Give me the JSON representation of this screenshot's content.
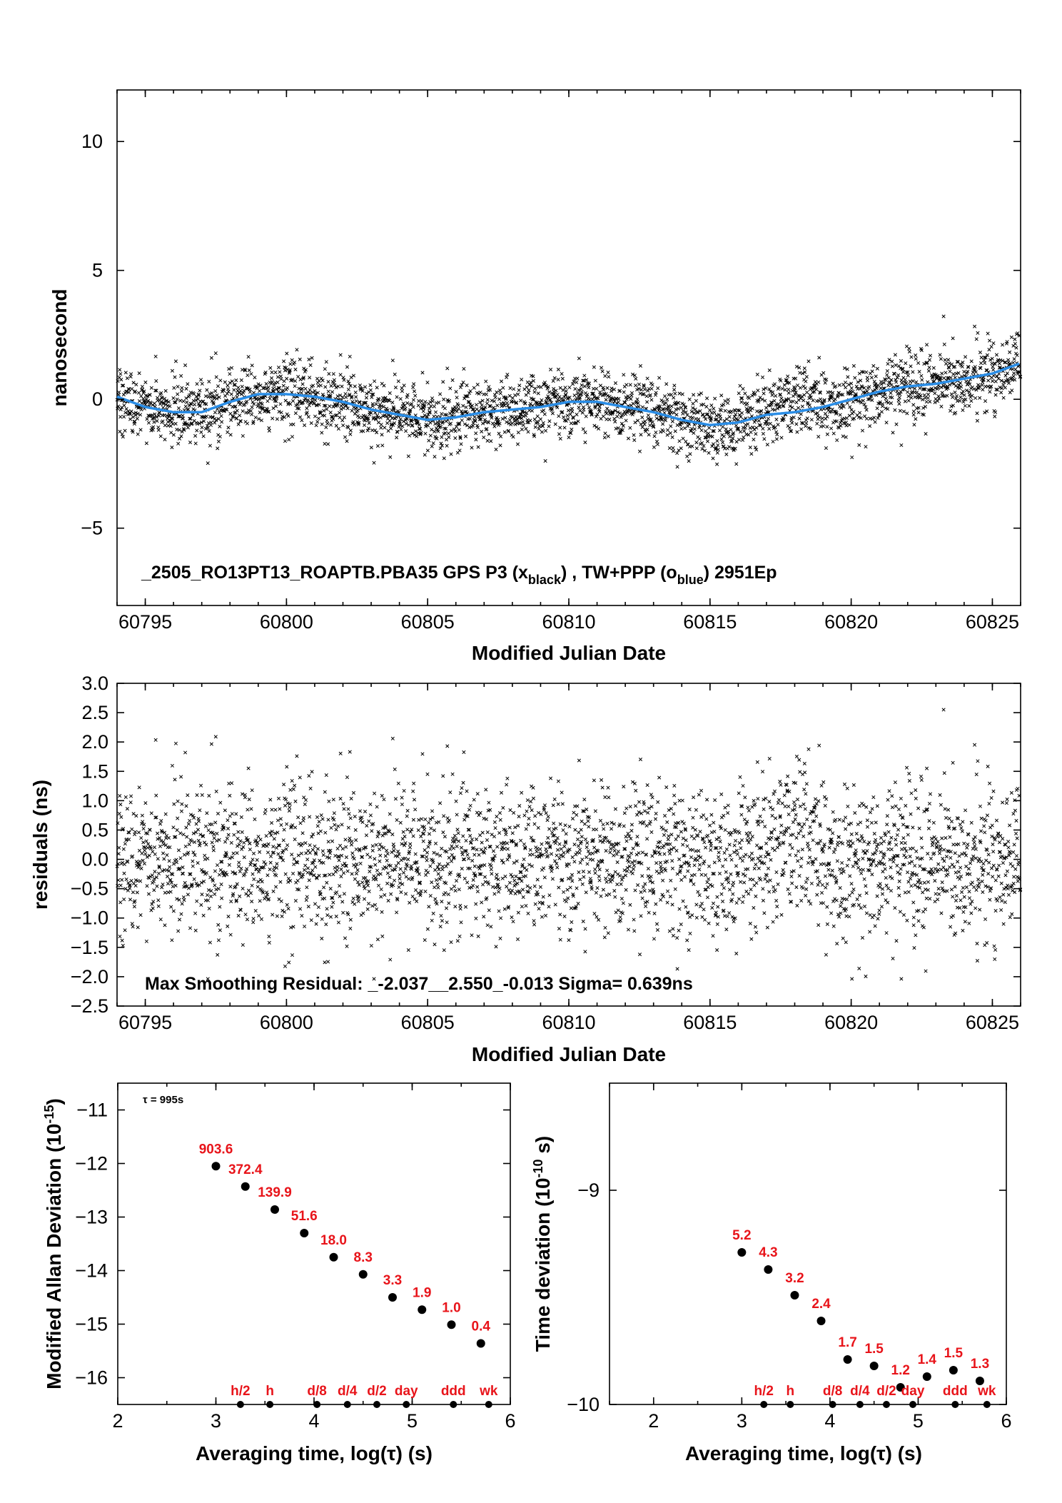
{
  "colors": {
    "points": "#000000",
    "smooth_line": "#2a8de6",
    "labels": "#e8141a"
  },
  "chart_data": [
    {
      "type": "scatter",
      "xlabel": "Modified Julian Date",
      "ylabel": "nanosecond",
      "xlim": [
        60794,
        60826
      ],
      "ylim": [
        -8,
        12
      ],
      "x_ticks": [
        60795,
        60800,
        60805,
        60810,
        60815,
        60820,
        60825
      ],
      "y_ticks": [
        -5,
        0,
        5,
        10
      ],
      "annotation": {
        "main": "_2505_RO13PT13_ROAPTB.PBA35     GPS P3 (x",
        "sub1": "black",
        "mid": ") ,  TW+PPP (o",
        "sub2": "blue",
        "end": ")  2951Ep"
      },
      "series": [
        {
          "marker": "x",
          "n_points": 2951,
          "spread_ns": 0.64
        },
        {
          "marker": "o",
          "smooth_x": [
            60794,
            60795,
            60796,
            60797,
            60798,
            60799,
            60800,
            60801,
            60802,
            60803,
            60804,
            60805,
            60806,
            60807,
            60808,
            60809,
            60810,
            60811,
            60812,
            60813,
            60814,
            60815,
            60816,
            60817,
            60818,
            60819,
            60820,
            60821,
            60822,
            60823,
            60824,
            60825,
            60826
          ],
          "smooth_y": [
            0.1,
            -0.3,
            -0.5,
            -0.5,
            -0.1,
            0.2,
            0.2,
            0.1,
            -0.1,
            -0.4,
            -0.6,
            -0.8,
            -0.7,
            -0.5,
            -0.4,
            -0.3,
            -0.1,
            -0.1,
            -0.3,
            -0.5,
            -0.8,
            -1.0,
            -0.9,
            -0.6,
            -0.5,
            -0.3,
            0.0,
            0.3,
            0.5,
            0.6,
            0.8,
            1.0,
            1.4
          ]
        }
      ]
    },
    {
      "type": "scatter",
      "xlabel": "Modified Julian Date",
      "ylabel": "residuals (ns)",
      "xlim": [
        60794,
        60826
      ],
      "ylim": [
        -2.5,
        3.0
      ],
      "x_ticks": [
        60795,
        60800,
        60805,
        60810,
        60815,
        60820,
        60825
      ],
      "y_ticks": [
        -2.5,
        -2.0,
        -1.5,
        -1.0,
        -0.5,
        0.0,
        0.5,
        1.0,
        1.5,
        2.0,
        2.5,
        3.0
      ],
      "y_tick_labels": [
        "−2.5",
        "−2.0",
        "−1.5",
        "−1.0",
        "−0.5",
        "0.0",
        "0.5",
        "1.0",
        "1.5",
        "2.0",
        "2.5",
        "3.0"
      ],
      "annotation": "Max Smoothing Residual: _-2.037__2.550_-0.013  Sigma= 0.639ns",
      "sigma_ns": 0.639,
      "min_ns": -2.037,
      "max_ns": 2.55
    },
    {
      "type": "scatter",
      "xlabel": "Averaging time, log(τ) (s)",
      "ylabel_main": "Modified Allan Deviation (10",
      "ylabel_sup": "-15",
      "ylabel_end": ")",
      "xlim": [
        2,
        6
      ],
      "ylim": [
        -16.5,
        -10.5
      ],
      "x_ticks": [
        2,
        3,
        4,
        5,
        6
      ],
      "y_ticks": [
        -16,
        -15,
        -14,
        -13,
        -12,
        -11
      ],
      "y_tick_labels": [
        "−16",
        "−15",
        "−14",
        "−13",
        "−12",
        "−11"
      ],
      "tau_note": "τ = 995s",
      "x": [
        3.0,
        3.3,
        3.6,
        3.9,
        4.2,
        4.5,
        4.8,
        5.1,
        5.4,
        5.7
      ],
      "y": [
        -12.05,
        -12.43,
        -12.86,
        -13.3,
        -13.75,
        -14.07,
        -14.5,
        -14.73,
        -15.01,
        -15.36
      ],
      "labels": [
        "903.6",
        "372.4",
        "139.9",
        "51.6",
        "18.0",
        "8.3",
        "3.3",
        "1.9",
        "1.0",
        "0.4"
      ],
      "markers": [
        {
          "label": "h/2",
          "x": 3.25
        },
        {
          "label": "h",
          "x": 3.55
        },
        {
          "label": "d/8",
          "x": 4.03
        },
        {
          "label": "d/4",
          "x": 4.34
        },
        {
          "label": "d/2",
          "x": 4.64
        },
        {
          "label": "day",
          "x": 4.94
        },
        {
          "label": "ddd",
          "x": 5.42
        },
        {
          "label": "wk",
          "x": 5.78
        }
      ]
    },
    {
      "type": "scatter",
      "xlabel": "Averaging time, log(τ) (s)",
      "ylabel_main": "Time deviation (10",
      "ylabel_sup": "-10",
      "ylabel_end": " s)",
      "xlim": [
        1.5,
        6
      ],
      "ylim": [
        -10,
        -8.5
      ],
      "x_ticks": [
        2,
        3,
        4,
        5,
        6
      ],
      "y_ticks": [
        -10,
        -9
      ],
      "y_tick_labels": [
        "−10",
        "−9"
      ],
      "x": [
        3.0,
        3.3,
        3.6,
        3.9,
        4.2,
        4.5,
        4.8,
        5.1,
        5.4,
        5.7
      ],
      "y": [
        -9.29,
        -9.37,
        -9.49,
        -9.61,
        -9.79,
        -9.82,
        -9.92,
        -9.87,
        -9.84,
        -9.89
      ],
      "labels": [
        "5.2",
        "4.3",
        "3.2",
        "2.4",
        "1.7",
        "1.5",
        "1.2",
        "1.4",
        "1.5",
        "1.3"
      ],
      "markers": [
        {
          "label": "h/2",
          "x": 3.25
        },
        {
          "label": "h",
          "x": 3.55
        },
        {
          "label": "d/8",
          "x": 4.03
        },
        {
          "label": "d/4",
          "x": 4.34
        },
        {
          "label": "d/2",
          "x": 4.64
        },
        {
          "label": "day",
          "x": 4.94
        },
        {
          "label": "ddd",
          "x": 5.42
        },
        {
          "label": "wk",
          "x": 5.78
        }
      ]
    }
  ]
}
